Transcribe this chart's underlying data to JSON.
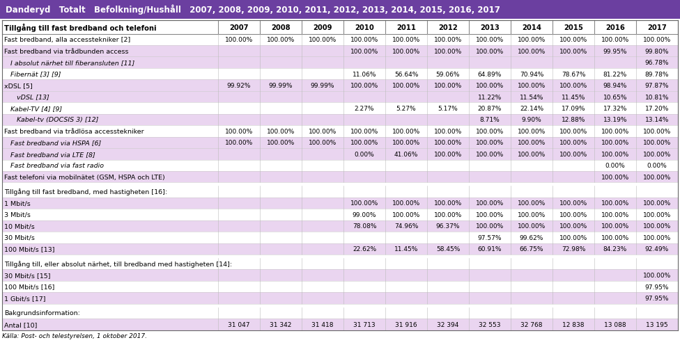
{
  "title": "Danderyd   Totalt   Befolkning/Hushåll   2007, 2008, 2009, 2010, 2011, 2012, 2013, 2014, 2015, 2016, 2017",
  "header_bg": "#6b3fa0",
  "header_fg": "#ffffff",
  "footer_text": "Källa: Post- och telestyrelsen, 1 oktober 2017.",
  "columns": [
    "",
    "2007",
    "2008",
    "2009",
    "2010",
    "2011",
    "2012",
    "2013",
    "2014",
    "2015",
    "2016",
    "2017"
  ],
  "rows": [
    {
      "label": "Tillgång till fast bredband och telefoni",
      "bold": true,
      "italic": false,
      "values": [
        "",
        "",
        "",
        "",
        "",
        "",
        "",
        "",
        "",
        "",
        ""
      ],
      "bg": "#ffffff",
      "is_col_header": true
    },
    {
      "label": "Fast bredband, alla accesstekniker [2]",
      "bold": false,
      "italic": false,
      "values": [
        "100.00%",
        "100.00%",
        "100.00%",
        "100.00%",
        "100.00%",
        "100.00%",
        "100.00%",
        "100.00%",
        "100.00%",
        "100.00%",
        "100.00%"
      ],
      "bg": "#ffffff"
    },
    {
      "label": "Fast bredband via trådbunden access",
      "bold": false,
      "italic": false,
      "values": [
        "",
        "",
        "",
        "100.00%",
        "100.00%",
        "100.00%",
        "100.00%",
        "100.00%",
        "100.00%",
        "99.95%",
        "99.80%"
      ],
      "bg": "#ead5f0"
    },
    {
      "label": "   I absolut närhet till fiberansluten [11]",
      "bold": false,
      "italic": true,
      "values": [
        "",
        "",
        "",
        "",
        "",
        "",
        "",
        "",
        "",
        "",
        "96.78%"
      ],
      "bg": "#ead5f0"
    },
    {
      "label": "   Fibernät [3] [9]",
      "bold": false,
      "italic": true,
      "values": [
        "",
        "",
        "",
        "11.06%",
        "56.64%",
        "59.06%",
        "64.89%",
        "70.94%",
        "78.67%",
        "81.22%",
        "89.78%"
      ],
      "bg": "#ffffff"
    },
    {
      "label": "xDSL [5]",
      "bold": false,
      "italic": false,
      "values": [
        "99.92%",
        "99.99%",
        "99.99%",
        "100.00%",
        "100.00%",
        "100.00%",
        "100.00%",
        "100.00%",
        "100.00%",
        "98.94%",
        "97.87%"
      ],
      "bg": "#ead5f0"
    },
    {
      "label": "      vDSL [13]",
      "bold": false,
      "italic": true,
      "values": [
        "",
        "",
        "",
        "",
        "",
        "",
        "11.22%",
        "11.54%",
        "11.45%",
        "10.65%",
        "10.81%"
      ],
      "bg": "#ead5f0"
    },
    {
      "label": "   Kabel-TV [4] [9]",
      "bold": false,
      "italic": true,
      "values": [
        "",
        "",
        "",
        "2.27%",
        "5.27%",
        "5.17%",
        "20.87%",
        "22.14%",
        "17.09%",
        "17.32%",
        "17.20%"
      ],
      "bg": "#ffffff"
    },
    {
      "label": "      Kabel-tv (DOCSIS 3) [12]",
      "bold": false,
      "italic": true,
      "values": [
        "",
        "",
        "",
        "",
        "",
        "",
        "8.71%",
        "9.90%",
        "12.88%",
        "13.19%",
        "13.14%"
      ],
      "bg": "#ead5f0"
    },
    {
      "label": "Fast bredband via trådlösa accesstekniker",
      "bold": false,
      "italic": false,
      "values": [
        "100.00%",
        "100.00%",
        "100.00%",
        "100.00%",
        "100.00%",
        "100.00%",
        "100.00%",
        "100.00%",
        "100.00%",
        "100.00%",
        "100.00%"
      ],
      "bg": "#ffffff"
    },
    {
      "label": "   Fast bredband via HSPA [6]",
      "bold": false,
      "italic": true,
      "values": [
        "100.00%",
        "100.00%",
        "100.00%",
        "100.00%",
        "100.00%",
        "100.00%",
        "100.00%",
        "100.00%",
        "100.00%",
        "100.00%",
        "100.00%"
      ],
      "bg": "#ead5f0"
    },
    {
      "label": "   Fast bredband via LTE [8]",
      "bold": false,
      "italic": true,
      "values": [
        "",
        "",
        "",
        "0.00%",
        "41.06%",
        "100.00%",
        "100.00%",
        "100.00%",
        "100.00%",
        "100.00%",
        "100.00%"
      ],
      "bg": "#ead5f0"
    },
    {
      "label": "   Fast bredband via fast radio",
      "bold": false,
      "italic": true,
      "values": [
        "",
        "",
        "",
        "",
        "",
        "",
        "",
        "",
        "",
        "0.00%",
        "0.00%"
      ],
      "bg": "#ffffff"
    },
    {
      "label": "Fast telefoni via mobilnätet (GSM, HSPA och LTE)",
      "bold": false,
      "italic": false,
      "values": [
        "",
        "",
        "",
        "",
        "",
        "",
        "",
        "",
        "",
        "100.00%",
        "100.00%"
      ],
      "bg": "#ead5f0"
    },
    {
      "label": "",
      "bold": false,
      "italic": false,
      "values": [
        "",
        "",
        "",
        "",
        "",
        "",
        "",
        "",
        "",
        "",
        ""
      ],
      "bg": "#ffffff",
      "is_spacer": true
    },
    {
      "label": "Tillgång till fast bredband, med hastigheten [16]:",
      "bold": false,
      "italic": false,
      "values": [
        "",
        "",
        "",
        "",
        "",
        "",
        "",
        "",
        "",
        "",
        ""
      ],
      "bg": "#ffffff"
    },
    {
      "label": "1 Mbit/s",
      "bold": false,
      "italic": false,
      "values": [
        "",
        "",
        "",
        "100.00%",
        "100.00%",
        "100.00%",
        "100.00%",
        "100.00%",
        "100.00%",
        "100.00%",
        "100.00%"
      ],
      "bg": "#ead5f0"
    },
    {
      "label": "3 Mbit/s",
      "bold": false,
      "italic": false,
      "values": [
        "",
        "",
        "",
        "99.00%",
        "100.00%",
        "100.00%",
        "100.00%",
        "100.00%",
        "100.00%",
        "100.00%",
        "100.00%"
      ],
      "bg": "#ffffff"
    },
    {
      "label": "10 Mbit/s",
      "bold": false,
      "italic": false,
      "values": [
        "",
        "",
        "",
        "78.08%",
        "74.96%",
        "96.37%",
        "100.00%",
        "100.00%",
        "100.00%",
        "100.00%",
        "100.00%"
      ],
      "bg": "#ead5f0"
    },
    {
      "label": "30 Mbit/s",
      "bold": false,
      "italic": false,
      "values": [
        "",
        "",
        "",
        "",
        "",
        "",
        "97.57%",
        "99.62%",
        "100.00%",
        "100.00%",
        "100.00%"
      ],
      "bg": "#ffffff"
    },
    {
      "label": "100 Mbit/s [13]",
      "bold": false,
      "italic": false,
      "values": [
        "",
        "",
        "",
        "22.62%",
        "11.45%",
        "58.45%",
        "60.91%",
        "66.75%",
        "72.98%",
        "84.23%",
        "92.49%"
      ],
      "bg": "#ead5f0"
    },
    {
      "label": "",
      "bold": false,
      "italic": false,
      "values": [
        "",
        "",
        "",
        "",
        "",
        "",
        "",
        "",
        "",
        "",
        ""
      ],
      "bg": "#ffffff",
      "is_spacer": true
    },
    {
      "label": "Tillgång till, eller absolut närhet, till bredband med hastigheten [14]:",
      "bold": false,
      "italic": false,
      "values": [
        "",
        "",
        "",
        "",
        "",
        "",
        "",
        "",
        "",
        "",
        ""
      ],
      "bg": "#ffffff"
    },
    {
      "label": "30 Mbit/s [15]",
      "bold": false,
      "italic": false,
      "values": [
        "",
        "",
        "",
        "",
        "",
        "",
        "",
        "",
        "",
        "",
        "100.00%"
      ],
      "bg": "#ead5f0"
    },
    {
      "label": "100 Mbit/s [16]",
      "bold": false,
      "italic": false,
      "values": [
        "",
        "",
        "",
        "",
        "",
        "",
        "",
        "",
        "",
        "",
        "97.95%"
      ],
      "bg": "#ffffff"
    },
    {
      "label": "1 Gbit/s [17]",
      "bold": false,
      "italic": false,
      "values": [
        "",
        "",
        "",
        "",
        "",
        "",
        "",
        "",
        "",
        "",
        "97.95%"
      ],
      "bg": "#ead5f0"
    },
    {
      "label": "",
      "bold": false,
      "italic": false,
      "values": [
        "",
        "",
        "",
        "",
        "",
        "",
        "",
        "",
        "",
        "",
        ""
      ],
      "bg": "#ffffff",
      "is_spacer": true
    },
    {
      "label": "Bakgrundsinformation:",
      "bold": false,
      "italic": false,
      "values": [
        "",
        "",
        "",
        "",
        "",
        "",
        "",
        "",
        "",
        "",
        ""
      ],
      "bg": "#ffffff"
    },
    {
      "label": "Antal [10]",
      "bold": false,
      "italic": false,
      "values": [
        "31 047",
        "31 342",
        "31 418",
        "31 713",
        "31 916",
        "32 394",
        "32 553",
        "32 768",
        "12 838",
        "13 088",
        "13 195"
      ],
      "bg": "#ead5f0"
    }
  ]
}
